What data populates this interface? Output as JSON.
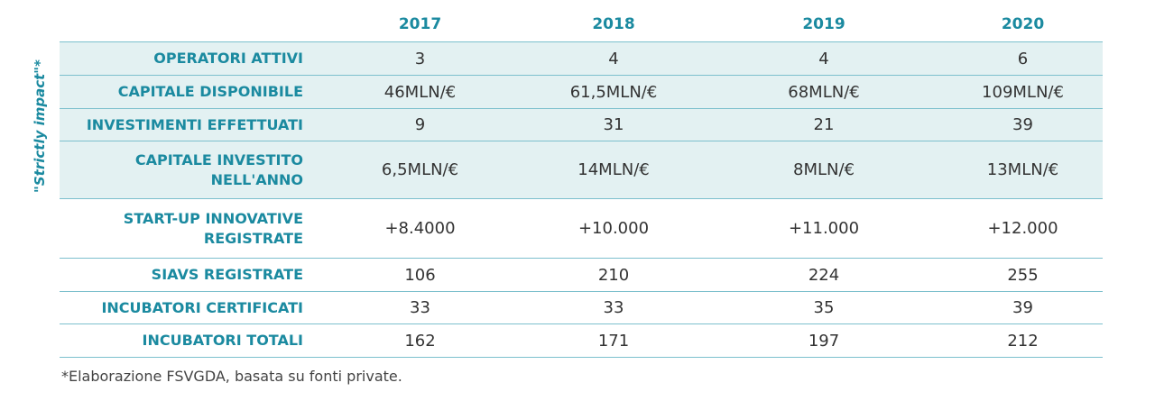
{
  "side_label": "\"Strictly impact\"*",
  "years": [
    "2017",
    "2018",
    "2019",
    "2020"
  ],
  "rows": [
    {
      "label": "OPERATORI ATTIVI",
      "values": [
        "3",
        "4",
        "4",
        "6"
      ]
    },
    {
      "label": "CAPITALE DISPONIBILE",
      "values": [
        "46MLN/€",
        "61,5MLN/€",
        "68MLN/€",
        "109MLN/€"
      ]
    },
    {
      "label": "INVESTIMENTI EFFETTUATI",
      "values": [
        "9",
        "31",
        "21",
        "39"
      ]
    },
    {
      "label": "CAPITALE INVESTITO NELL'ANNO",
      "values": [
        "6,5MLN/€",
        "14MLN/€",
        "8MLN/€",
        "13MLN/€"
      ]
    },
    {
      "label": "START-UP INNOVATIVE REGISTRATE",
      "values": [
        "+8.4000",
        "+10.000",
        "+11.000",
        "+12.000"
      ]
    },
    {
      "label": "SIAVS REGISTRATE",
      "values": [
        "106",
        "210",
        "224",
        "255"
      ]
    },
    {
      "label": "INCUBATORI CERTIFICATI",
      "values": [
        "33",
        "33",
        "35",
        "39"
      ]
    },
    {
      "label": "INCUBATORI TOTALI",
      "values": [
        "162",
        "171",
        "197",
        "212"
      ]
    }
  ],
  "footnote": "*Elaborazione FSVGDA, basata su fonti private.",
  "colors": {
    "accent": "#1b8aa0",
    "shade": "#e3f1f2",
    "rule": "#7cc0cd",
    "text": "#333333"
  }
}
